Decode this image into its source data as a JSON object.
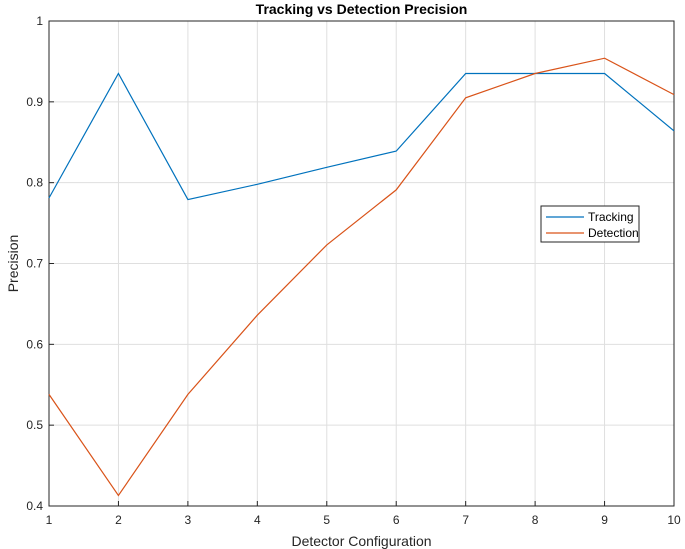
{
  "chart_data": {
    "type": "line",
    "title": "Tracking vs Detection Precision",
    "xlabel": "Detector Configuration",
    "ylabel": "Precision",
    "x": [
      1,
      2,
      3,
      4,
      5,
      6,
      7,
      8,
      9,
      10
    ],
    "xlim": [
      1,
      10
    ],
    "ylim": [
      0.4,
      1
    ],
    "xticks": [
      "1",
      "2",
      "3",
      "4",
      "5",
      "6",
      "7",
      "8",
      "9",
      "10"
    ],
    "yticks": [
      "0.4",
      "0.5",
      "0.6",
      "0.7",
      "0.8",
      "0.9",
      "1"
    ],
    "grid": true,
    "legend_position": "right",
    "series": [
      {
        "name": "Tracking",
        "color": "#0072BD",
        "values": [
          0.781,
          0.935,
          0.779,
          0.798,
          0.819,
          0.839,
          0.935,
          0.935,
          0.935,
          0.864
        ]
      },
      {
        "name": "Detection",
        "color": "#D95319",
        "values": [
          0.538,
          0.413,
          0.538,
          0.636,
          0.723,
          0.791,
          0.905,
          0.935,
          0.954,
          0.909
        ]
      }
    ]
  }
}
